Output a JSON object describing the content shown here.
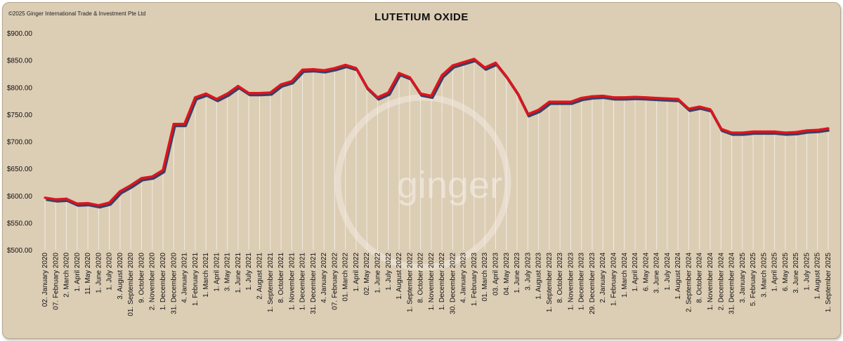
{
  "copyright": "©2025 Ginger International Trade & Investment Pte Ltd",
  "watermark": "ginger",
  "chart_data": {
    "type": "line",
    "title": "LUTETIUM OXIDE",
    "xlabel": "",
    "ylabel": "",
    "ylim": [
      500,
      900
    ],
    "yticks": [
      "$900.00",
      "$850.00",
      "$800.00",
      "$750.00",
      "$700.00",
      "$650.00",
      "$600.00",
      "$550.00",
      "$500.00"
    ],
    "ytick_values": [
      900,
      850,
      800,
      750,
      700,
      650,
      600,
      550,
      500
    ],
    "grid": false,
    "legend": "none",
    "colors": {
      "line": "#e0141b",
      "shadow": "#3a3f66",
      "drop": "#f4f0e8",
      "background": "#dccdb5"
    },
    "categories": [
      "02. January 2020",
      "07. February 2020",
      "2. March 2020",
      "1. April 2020",
      "11. May 2020",
      "1. June 2020",
      "1. July 2020",
      "3. August 2020",
      "01. September 2020",
      "9. October 2020",
      "2. November 2020",
      "1. December 2020",
      "31. December 2020",
      "4. January 2021",
      "1. February 2021",
      "1. March 2021",
      "1. April 2021",
      "3. May 2021",
      "1. June 2021",
      "1. July 2021",
      "2. August 2021",
      "1. September 2021",
      "8. October 2021",
      "1. November 2021",
      "1. December 2021",
      "31. December 2021",
      "4. January 2022",
      "07. February 2022",
      "01. March 2022",
      "1. April 2022",
      "02. May 2022",
      "1. June 2022",
      "1. July 2022",
      "1. August 2022",
      "1. September 2022",
      "8. October 2022",
      "1. November 2022",
      "1. December 2022",
      "30. December 2022",
      "4. January 2023",
      "1. February 2023",
      "01. March 2023",
      "03. April 2023",
      "04. May 2023",
      "1. June 2023",
      "3. July 2023",
      "1. August 2023",
      "1. September 2023",
      "8. October 2023",
      "1. November 2023",
      "1. December 2023",
      "29. December 2023",
      "2. January 2024",
      "1. February 2024",
      "1. March 2024",
      "1. April 2024",
      "6. May 2024",
      "3. June 2024",
      "1. July 2024",
      "1. August 2024",
      "2. September 2024",
      "8. October 2024",
      "1. November 2024",
      "2. December 2024",
      "31. December 2024",
      "3. January 2025",
      "5. February 2025",
      "3. March 2025",
      "1. April 2025",
      "6. May 2025",
      "3. June 2025",
      "1. July 2025",
      "1. August 2025",
      "1. September 2025"
    ],
    "series": [
      {
        "values": [
          596,
          593,
          594,
          585,
          586,
          582,
          587,
          608,
          619,
          632,
          635,
          647,
          732,
          732,
          781,
          788,
          778,
          788,
          802,
          789,
          789,
          790,
          805,
          811,
          832,
          833,
          831,
          835,
          841,
          835,
          800,
          781,
          790,
          826,
          818,
          788,
          784,
          822,
          840,
          846,
          852,
          836,
          845,
          820,
          790,
          750,
          758,
          773,
          773,
          773,
          780,
          783,
          784,
          781,
          781,
          782,
          781,
          780,
          779,
          778,
          760,
          764,
          759,
          723,
          716,
          716,
          718,
          718,
          718,
          716,
          717,
          720,
          721,
          724
        ]
      }
    ]
  }
}
